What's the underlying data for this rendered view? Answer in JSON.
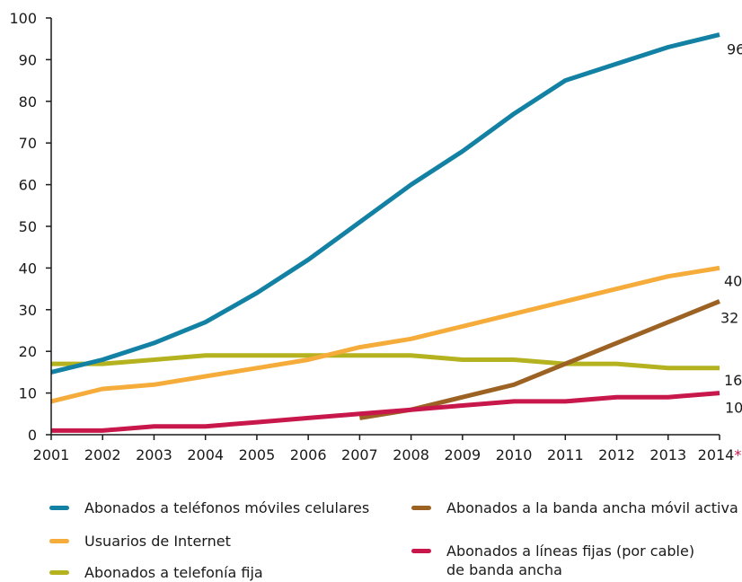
{
  "chart_data": {
    "type": "line",
    "title": "",
    "xlabel": "",
    "ylabel": "",
    "x": [
      "2001",
      "2002",
      "2003",
      "2004",
      "2005",
      "2006",
      "2007",
      "2008",
      "2009",
      "2010",
      "2011",
      "2012",
      "2013",
      "2014"
    ],
    "x_last_suffix": "*",
    "x_last_suffix_color": "#c8174a",
    "ylim": [
      0,
      100
    ],
    "yticks": [
      0,
      10,
      20,
      30,
      40,
      50,
      60,
      70,
      80,
      90,
      100
    ],
    "grid": false,
    "series": [
      {
        "name": "Abonados a teléfonos móviles celulares",
        "color": "#1281a3",
        "values": [
          15,
          18,
          22,
          27,
          34,
          42,
          51,
          60,
          68,
          77,
          85,
          89,
          93,
          96
        ],
        "end_label": "96"
      },
      {
        "name": "Usuarios de Internet",
        "color": "#f5ac3a",
        "values": [
          8,
          11,
          12,
          14,
          16,
          18,
          21,
          23,
          26,
          29,
          32,
          35,
          38,
          40
        ],
        "end_label": "40"
      },
      {
        "name": "Abonados a telefonía fija",
        "color": "#b5b21f",
        "values": [
          17,
          17,
          18,
          19,
          19,
          19,
          19,
          19,
          18,
          18,
          17,
          17,
          16,
          16
        ],
        "end_label": "16"
      },
      {
        "name": "Abonados a la banda ancha móvil activa",
        "color": "#9c6223",
        "values": [
          null,
          null,
          null,
          null,
          null,
          null,
          4,
          6,
          9,
          12,
          17,
          22,
          27,
          32
        ],
        "end_label": "32"
      },
      {
        "name": "Abonados a líneas fijas (por cable)\nde banda ancha",
        "color": "#c8174a",
        "values": [
          1,
          1,
          2,
          2,
          3,
          4,
          5,
          6,
          7,
          8,
          8,
          9,
          9,
          10
        ],
        "end_label": "10"
      }
    ],
    "legend_position": "bottom"
  }
}
